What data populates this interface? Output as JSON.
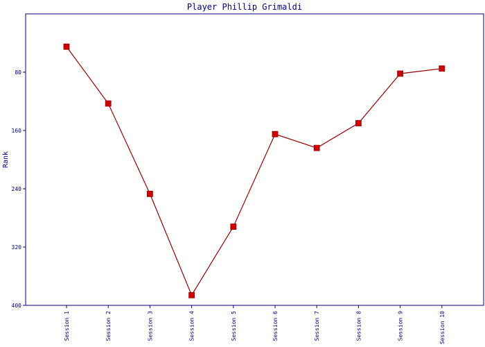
{
  "chart_data": {
    "type": "line",
    "title": "Player Phillip Grimaldi",
    "ylabel": "Rank",
    "xlabel": "",
    "categories": [
      "Session 1",
      "Session 2",
      "Session 3",
      "Session 4",
      "Session 5",
      "Session 6",
      "Session 7",
      "Session 8",
      "Session 9",
      "Session 10"
    ],
    "values": [
      45,
      123,
      247,
      386,
      292,
      165,
      184,
      150,
      82,
      75
    ],
    "yticks": [
      "80",
      "160",
      "240",
      "320",
      "400"
    ],
    "ylim": [
      400,
      0
    ],
    "y_inverted": true,
    "grid": false,
    "line_color": "#990000",
    "marker_color": "#cc0000",
    "axis_color": "#000080"
  }
}
